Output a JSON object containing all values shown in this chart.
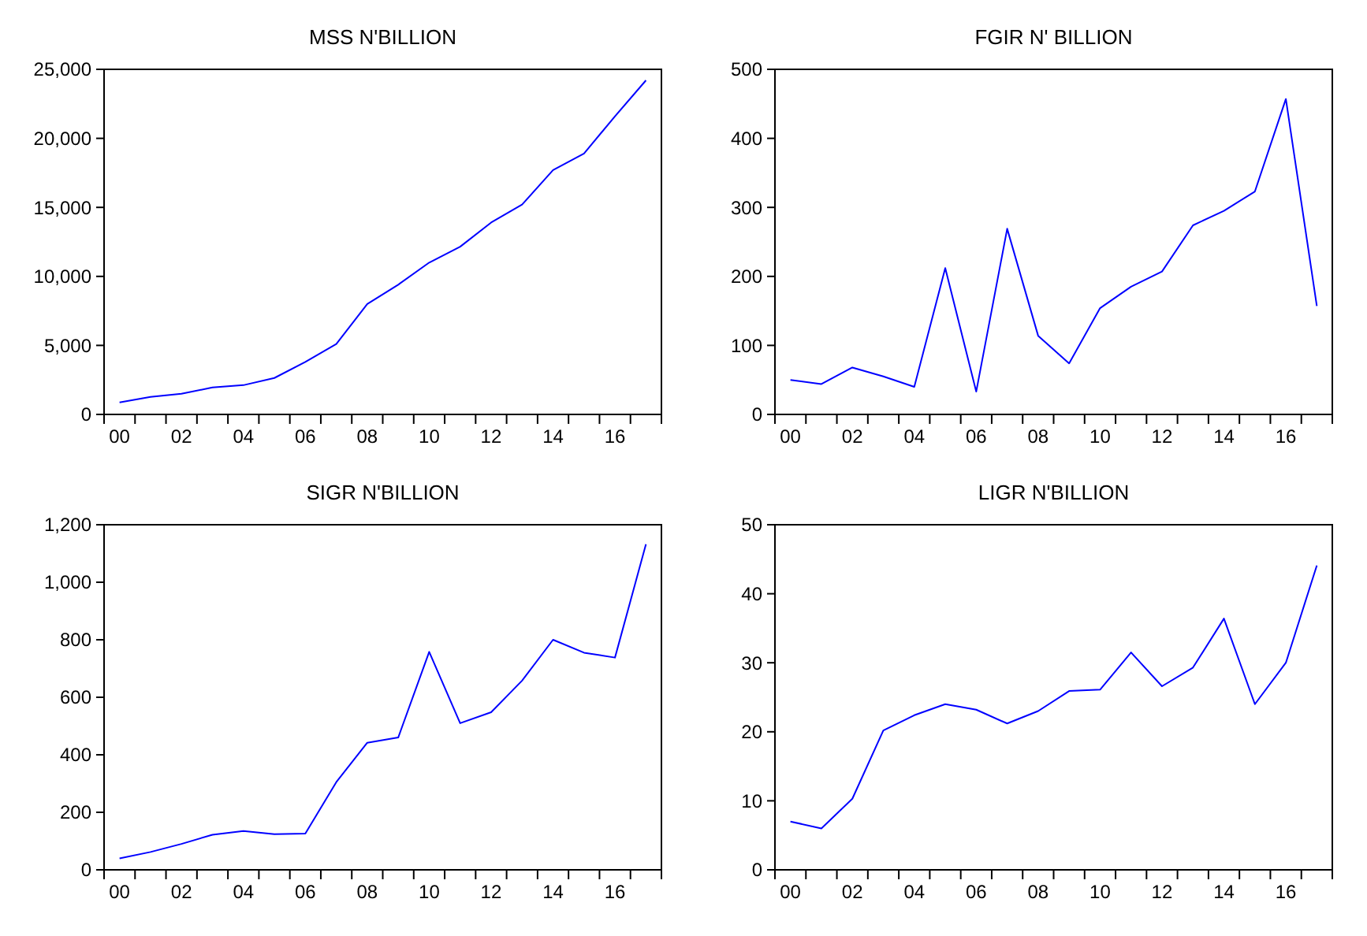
{
  "chart_data": [
    {
      "type": "line",
      "title": "MSS N'BILLION",
      "categories": [
        "00",
        null,
        "02",
        null,
        "04",
        null,
        "06",
        null,
        "08",
        null,
        "10",
        null,
        "12",
        null,
        "14",
        null,
        "16",
        null
      ],
      "series": [
        {
          "color": "#0000ff",
          "values": [
            870,
            1270,
            1500,
            1950,
            2120,
            2640,
            3800,
            5100,
            8000,
            9400,
            11000,
            12150,
            13900,
            15200,
            17700,
            18900,
            21600,
            24200
          ]
        }
      ],
      "ylim": [
        0,
        25000
      ],
      "yticks": [
        {
          "value": 0,
          "label": "0"
        },
        {
          "value": 5000,
          "label": "5,000"
        },
        {
          "value": 10000,
          "label": "10,000"
        },
        {
          "value": 15000,
          "label": "15,000"
        },
        {
          "value": 20000,
          "label": "20,000"
        },
        {
          "value": 25000,
          "label": "25,000"
        }
      ]
    },
    {
      "type": "line",
      "title": "FGIR N' BILLION",
      "categories": [
        "00",
        null,
        "02",
        null,
        "04",
        null,
        "06",
        null,
        "08",
        null,
        "10",
        null,
        "12",
        null,
        "14",
        null,
        "16",
        null
      ],
      "series": [
        {
          "color": "#0000ff",
          "values": [
            50,
            44,
            68,
            55,
            40,
            212,
            33,
            269,
            114,
            74,
            154,
            185,
            207,
            274,
            295,
            323,
            457,
            157
          ]
        }
      ],
      "ylim": [
        0,
        500
      ],
      "yticks": [
        0,
        100,
        200,
        300,
        400,
        500
      ]
    },
    {
      "type": "line",
      "title": "SIGR N'BILLION",
      "categories": [
        "00",
        null,
        "02",
        null,
        "04",
        null,
        "06",
        null,
        "08",
        null,
        "10",
        null,
        "12",
        null,
        "14",
        null,
        "16",
        null
      ],
      "series": [
        {
          "color": "#0000ff",
          "values": [
            40,
            62,
            90,
            122,
            135,
            124,
            126,
            305,
            442,
            460,
            758,
            510,
            548,
            658,
            800,
            755,
            738,
            1132
          ]
        }
      ],
      "ylim": [
        0,
        1200
      ],
      "yticks": [
        0,
        200,
        400,
        600,
        800,
        {
          "value": 1000,
          "label": "1,000"
        },
        {
          "value": 1200,
          "label": "1,200"
        }
      ]
    },
    {
      "type": "line",
      "title": "LIGR N'BILLION",
      "categories": [
        "00",
        null,
        "02",
        null,
        "04",
        null,
        "06",
        null,
        "08",
        null,
        "10",
        null,
        "12",
        null,
        "14",
        null,
        "16",
        null
      ],
      "series": [
        {
          "color": "#0000ff",
          "values": [
            7,
            6,
            10.3,
            20.2,
            22.4,
            24,
            23.2,
            21.2,
            23,
            25.9,
            26.1,
            31.5,
            26.6,
            29.3,
            36.4,
            24,
            30,
            44.1
          ]
        }
      ],
      "ylim": [
        0,
        50
      ],
      "yticks": [
        0,
        10,
        20,
        30,
        40,
        50
      ]
    }
  ]
}
